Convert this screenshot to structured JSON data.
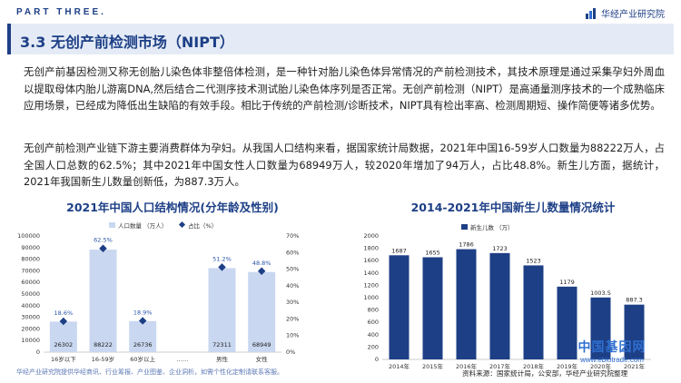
{
  "header": {
    "section_label": "PART THREE.",
    "brand_name": "华经产业研究院"
  },
  "section": {
    "title": "3.3 无创产前检测市场（NIPT）"
  },
  "paragraphs": {
    "p1": "无创产前基因检测又称无创胎儿染色体非整倍体检测，是一种针对胎儿染色体异常情况的产前检测技术，其技术原理是通过采集孕妇外周血以提取母体内胎儿游离DNA,然后结合二代测序技术测试胎儿染色体序列是否正常。无创产前检测（NIPT）是高通量测序技术的一个成熟临床应用场景，已经成为降低出生缺陷的有效手段。相比于传统的产前检测/诊断技术，NIPT具有检出率高、检测周期短、操作简便等诸多优势。",
    "p2": "无创产前检测产业链下游主要消费群体为孕妇。从我国人口结构来看，据国家统计局数据，2021年中国16-59岁人口数量为88222万人，占全国人口总数的62.5%；其中2021年中国女性人口数量为68949万人，较2020年增加了94万人，占比48.8%。新生儿方面，据统计，2021年我国新生儿数量创新低，为887.3万人。"
  },
  "footer": {
    "left_note": "华经产业研究院提供华经商讯、行业筹报、产业图鉴、企业洞析，如需个性化定制请联系客服。",
    "source": "资料来源：国家统计局，公安部，华经产业研究院整理",
    "watermark_main": "中国基因网",
    "watermark_sub": "www.ebiotrade.com"
  },
  "chart_data": [
    {
      "type": "bar",
      "title": "2021年中国人口结构情况(分年龄及性别)",
      "categories": [
        "16岁以下",
        "16-59岁",
        "60岁以上",
        "……",
        "男性",
        "女性"
      ],
      "series": [
        {
          "name": "人口数量 （万人）",
          "values": [
            26302,
            88222,
            26736,
            null,
            72311,
            68949
          ],
          "labels": [
            "26302",
            "88222",
            "26736",
            "",
            "72311",
            "68949"
          ]
        },
        {
          "name": "占比（%）",
          "values": [
            18.6,
            62.5,
            18.9,
            null,
            51.2,
            48.8
          ],
          "labels": [
            "18.6%",
            "62.5%",
            "18.9%",
            "",
            "51.2%",
            "48.8%"
          ]
        }
      ],
      "ylim": [
        0,
        100000
      ],
      "y_ticks": [
        "0",
        "10000",
        "20000",
        "30000",
        "40000",
        "50000",
        "60000",
        "70000",
        "80000",
        "90000",
        "100000"
      ],
      "y2lim": [
        0,
        70
      ],
      "y2_ticks": [
        "0%",
        "10%",
        "20%",
        "30%",
        "40%",
        "50%",
        "60%",
        "70%"
      ],
      "legend": "top-center",
      "colors": {
        "bar": "#c9d7f0",
        "marker": "#1d3f86"
      }
    },
    {
      "type": "bar",
      "title": "2014-2021年中国新生儿数量情况统计",
      "categories": [
        "2014年",
        "2015年",
        "2016年",
        "2017年",
        "2018年",
        "2019年",
        "2020年",
        "2021年"
      ],
      "series": [
        {
          "name": "新生儿数 （万）",
          "values": [
            1687,
            1655,
            1786,
            1723,
            1523,
            1179,
            1003.5,
            887.3
          ],
          "labels": [
            "1687",
            "1655",
            "1786",
            "1723",
            "1523",
            "1179",
            "1003.5",
            "887.3"
          ]
        }
      ],
      "ylim": [
        0,
        2000
      ],
      "y_ticks": [
        "0",
        "200",
        "400",
        "600",
        "800",
        "1000",
        "1200",
        "1400",
        "1600",
        "1800",
        "2000"
      ],
      "legend": "top-left",
      "colors": {
        "bar": "#1d3f86"
      }
    }
  ]
}
